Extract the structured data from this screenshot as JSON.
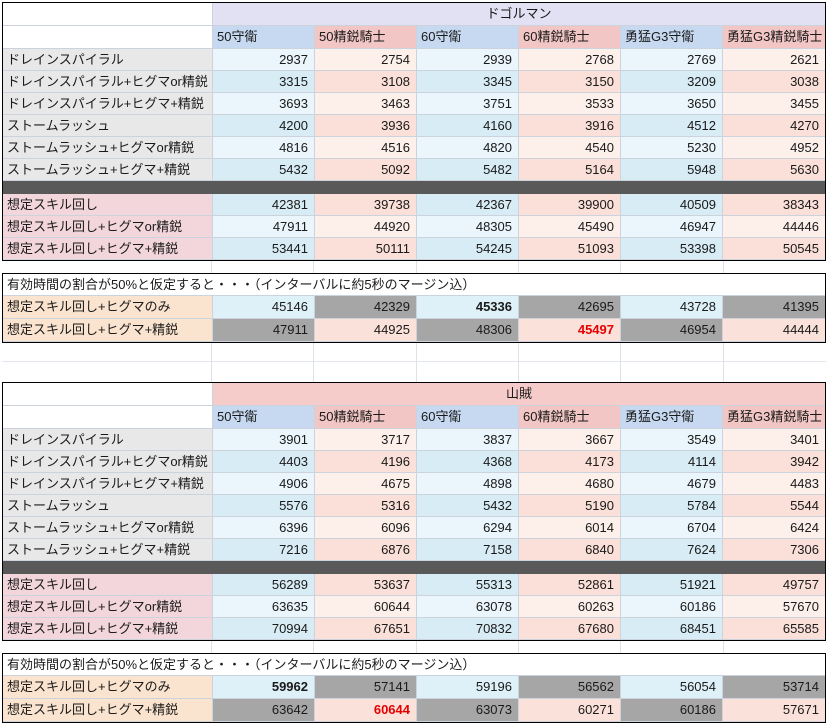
{
  "columns": [
    "50守衛",
    "50精鋭騎士",
    "60守衛",
    "60精鋭騎士",
    "勇猛G3守衛",
    "勇猛G3精鋭騎士"
  ],
  "tables": [
    {
      "title": "ドゴルマン",
      "skill_rows": [
        {
          "label": "ドレインスパイラル",
          "values": [
            2937,
            2754,
            2939,
            2768,
            2769,
            2621
          ]
        },
        {
          "label": "ドレインスパイラル+ヒグマor精鋭",
          "values": [
            3315,
            3108,
            3345,
            3150,
            3209,
            3038
          ]
        },
        {
          "label": "ドレインスパイラル+ヒグマ+精鋭",
          "values": [
            3693,
            3463,
            3751,
            3533,
            3650,
            3455
          ]
        },
        {
          "label": "ストームラッシュ",
          "values": [
            4200,
            3936,
            4160,
            3916,
            4512,
            4270
          ]
        },
        {
          "label": "ストームラッシュ+ヒグマor精鋭",
          "values": [
            4816,
            4516,
            4820,
            4540,
            5230,
            4952
          ]
        },
        {
          "label": "ストームラッシュ+ヒグマ+精鋭",
          "values": [
            5432,
            5092,
            5482,
            5164,
            5948,
            5630
          ]
        }
      ],
      "rotation_rows": [
        {
          "label": "想定スキル回し",
          "values": [
            42381,
            39738,
            42367,
            39900,
            40509,
            38343
          ]
        },
        {
          "label": "想定スキル回し+ヒグマor精鋭",
          "values": [
            47911,
            44920,
            48305,
            45490,
            46947,
            44446
          ]
        },
        {
          "label": "想定スキル回し+ヒグマ+精鋭",
          "values": [
            53441,
            50111,
            54245,
            51093,
            53398,
            50545
          ]
        }
      ],
      "uptime": {
        "title": "有効時間の割合が50%と仮定すると・・・（インターバルに約5秒のマージン込）",
        "rows": [
          {
            "label": "想定スキル回し+ヒグマのみ",
            "cells": [
              {
                "v": 45146,
                "bg": "blue"
              },
              {
                "v": 42329,
                "bg": "gray"
              },
              {
                "v": 45336,
                "bg": "blue",
                "bold": true
              },
              {
                "v": 42695,
                "bg": "gray"
              },
              {
                "v": 43728,
                "bg": "blue"
              },
              {
                "v": 41395,
                "bg": "gray"
              }
            ]
          },
          {
            "label": "想定スキル回し+ヒグマ+精鋭",
            "cells": [
              {
                "v": 47911,
                "bg": "gray"
              },
              {
                "v": 44925,
                "bg": "pink"
              },
              {
                "v": 48306,
                "bg": "gray"
              },
              {
                "v": 45497,
                "bg": "pink",
                "bold": true,
                "red": true
              },
              {
                "v": 46954,
                "bg": "gray"
              },
              {
                "v": 44444,
                "bg": "pink"
              }
            ]
          }
        ]
      }
    },
    {
      "title": "山賊",
      "skill_rows": [
        {
          "label": "ドレインスパイラル",
          "values": [
            3901,
            3717,
            3837,
            3667,
            3549,
            3401
          ]
        },
        {
          "label": "ドレインスパイラル+ヒグマor精鋭",
          "values": [
            4403,
            4196,
            4368,
            4173,
            4114,
            3942
          ]
        },
        {
          "label": "ドレインスパイラル+ヒグマ+精鋭",
          "values": [
            4906,
            4675,
            4898,
            4680,
            4679,
            4483
          ]
        },
        {
          "label": "ストームラッシュ",
          "values": [
            5576,
            5316,
            5432,
            5190,
            5784,
            5544
          ]
        },
        {
          "label": "ストームラッシュ+ヒグマor精鋭",
          "values": [
            6396,
            6096,
            6294,
            6014,
            6704,
            6424
          ]
        },
        {
          "label": "ストームラッシュ+ヒグマ+精鋭",
          "values": [
            7216,
            6876,
            7158,
            6840,
            7624,
            7306
          ]
        }
      ],
      "rotation_rows": [
        {
          "label": "想定スキル回し",
          "values": [
            56289,
            53637,
            55313,
            52861,
            51921,
            49757
          ]
        },
        {
          "label": "想定スキル回し+ヒグマor精鋭",
          "values": [
            63635,
            60644,
            63078,
            60263,
            60186,
            57670
          ]
        },
        {
          "label": "想定スキル回し+ヒグマ+精鋭",
          "values": [
            70994,
            67651,
            70832,
            67680,
            68451,
            65585
          ]
        }
      ],
      "uptime": {
        "title": "有効時間の割合が50%と仮定すると・・・（インターバルに約5秒のマージン込）",
        "rows": [
          {
            "label": "想定スキル回し+ヒグマのみ",
            "cells": [
              {
                "v": 59962,
                "bg": "blue",
                "bold": true
              },
              {
                "v": 57141,
                "bg": "gray"
              },
              {
                "v": 59196,
                "bg": "blue"
              },
              {
                "v": 56562,
                "bg": "gray"
              },
              {
                "v": 56054,
                "bg": "blue"
              },
              {
                "v": 53714,
                "bg": "gray"
              }
            ]
          },
          {
            "label": "想定スキル回し+ヒグマ+精鋭",
            "cells": [
              {
                "v": 63642,
                "bg": "gray"
              },
              {
                "v": 60644,
                "bg": "pink",
                "bold": true,
                "red": true
              },
              {
                "v": 63073,
                "bg": "gray"
              },
              {
                "v": 60271,
                "bg": "pink"
              },
              {
                "v": 60186,
                "bg": "gray"
              },
              {
                "v": 57671,
                "bg": "pink"
              }
            ]
          }
        ]
      }
    }
  ],
  "colors": {
    "emphasis_red": "#E60000",
    "gray_cell": "#A6A6A6",
    "separator_row": "#595959",
    "header_blue": "#C6D9F1",
    "header_pink": "#F2C6C4",
    "title_dogoruman": "#E2E1F4",
    "title_sanzoku": "#F5CCCA",
    "label_gray": "#E9E8E8",
    "label_rose": "#F2D6DC",
    "label_peach": "#FBE4CF"
  }
}
